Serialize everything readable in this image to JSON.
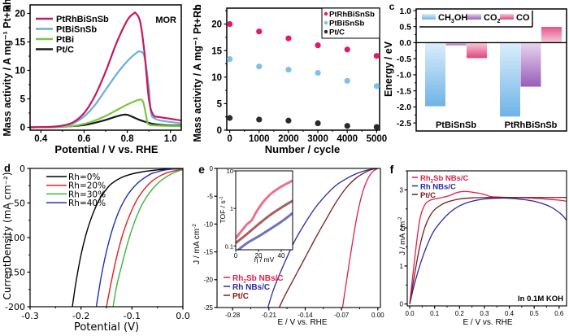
{
  "chart_data": [
    {
      "panel": "a",
      "type": "line",
      "annotation": "MOR",
      "xlabel": "Potential / V vs. RHE",
      "ylabel": "Mass activity / A mg⁻¹ Pt+Rh",
      "xlim": [
        0.35,
        1.05
      ],
      "ylim": [
        -0.5,
        21.5
      ],
      "xticks": [
        0.4,
        0.6,
        0.8,
        1.0
      ],
      "xtick_labels": [
        "0.4",
        "0.6",
        "0.8",
        "1.0"
      ],
      "yticks": [
        0,
        5,
        10,
        15,
        20
      ],
      "ytick_labels": [
        "0",
        "5",
        "10",
        "15",
        "20"
      ],
      "legend_position": "top-left",
      "series": [
        {
          "name": "PtRhBiSnSb",
          "color": "#c8185a",
          "x": [
            0.35,
            0.45,
            0.5,
            0.55,
            0.6,
            0.65,
            0.7,
            0.75,
            0.8,
            0.83,
            0.84,
            0.86,
            0.88,
            0.9,
            0.92,
            0.95,
            1.0,
            1.05
          ],
          "y": [
            0.0,
            0.1,
            0.3,
            0.9,
            2.5,
            5.5,
            9.8,
            14.8,
            18.8,
            20.0,
            20.0,
            18.5,
            13.0,
            5.0,
            2.2,
            1.8,
            1.5,
            1.2
          ]
        },
        {
          "name": "PtBiSnSb",
          "color": "#6aaee0",
          "x": [
            0.35,
            0.45,
            0.5,
            0.55,
            0.6,
            0.65,
            0.7,
            0.75,
            0.8,
            0.84,
            0.86,
            0.88,
            0.9,
            0.91,
            0.93,
            0.97,
            1.05
          ],
          "y": [
            0.0,
            0.1,
            0.25,
            0.7,
            1.9,
            3.9,
            6.6,
            9.3,
            11.6,
            13.0,
            13.3,
            12.3,
            7.0,
            2.5,
            1.5,
            1.1,
            0.7
          ]
        },
        {
          "name": "PtBi",
          "color": "#7cc443",
          "x": [
            0.35,
            0.5,
            0.55,
            0.6,
            0.65,
            0.7,
            0.75,
            0.8,
            0.85,
            0.87,
            0.88,
            0.89,
            0.9,
            0.95,
            1.05
          ],
          "y": [
            0.0,
            0.1,
            0.25,
            0.6,
            1.2,
            2.0,
            3.0,
            4.0,
            4.8,
            4.7,
            3.5,
            1.5,
            0.5,
            0.3,
            0.2
          ]
        },
        {
          "name": "Pt/C",
          "color": "#1a1a1a",
          "x": [
            0.35,
            0.5,
            0.6,
            0.65,
            0.7,
            0.75,
            0.78,
            0.8,
            0.82,
            0.85,
            0.88,
            0.92,
            0.97,
            1.05
          ],
          "y": [
            0.0,
            0.1,
            0.4,
            0.8,
            1.3,
            1.9,
            2.2,
            2.2,
            1.9,
            1.4,
            1.0,
            0.6,
            0.4,
            0.3
          ]
        }
      ]
    },
    {
      "panel": "b",
      "type": "scatter",
      "xlabel": "Number / cycle",
      "ylabel": "Mass activity / A mg⁻¹ Pt+Rh",
      "xlim": [
        -100,
        5100
      ],
      "ylim": [
        0,
        23
      ],
      "xticks": [
        0,
        1000,
        2000,
        3000,
        4000,
        5000
      ],
      "xtick_labels": [
        "0",
        "1000",
        "2000",
        "3000",
        "4000",
        "5000"
      ],
      "yticks": [
        0,
        5,
        10,
        15,
        20
      ],
      "ytick_labels": [
        "0",
        "5",
        "10",
        "15",
        "20"
      ],
      "legend_position": "top-right",
      "x": [
        0,
        1000,
        2000,
        3000,
        4000,
        5000
      ],
      "series": [
        {
          "name": "PtRhBiSnSb",
          "color": "#e0196b",
          "values": [
            20.0,
            18.6,
            17.3,
            16.0,
            15.2,
            14.0
          ]
        },
        {
          "name": "PtBiSnSb",
          "color": "#7ec0ea",
          "values": [
            13.4,
            12.0,
            11.4,
            10.8,
            9.3,
            8.3
          ]
        },
        {
          "name": "Pt/C",
          "color": "#2a2a2a",
          "values": [
            2.3,
            2.0,
            1.8,
            1.3,
            0.8,
            0.6
          ]
        }
      ]
    },
    {
      "panel": "c",
      "type": "bar",
      "ylabel": "Energy / eV",
      "ylim": [
        -2.5,
        1.0
      ],
      "yticks": [
        1.0,
        0.5,
        0.0,
        -0.5,
        -1.0,
        -1.5,
        -2.0,
        -2.5
      ],
      "ytick_labels": [
        "1.0",
        "0.5",
        "0.0",
        "-0.5",
        "-1.0",
        "-1.5",
        "-2.0",
        "-2.5"
      ],
      "categories": [
        "PtBiSnSb",
        "PtRhBiSnSb"
      ],
      "legend_position": "top",
      "series": [
        {
          "name": "CH3OH",
          "label_main": "CH",
          "label_sub": "3",
          "label_tail": "OH",
          "color_light": "#dceefb",
          "color_dark": "#6fb3e6",
          "values": [
            -1.98,
            -2.3
          ]
        },
        {
          "name": "CO2",
          "label_main": "CO",
          "label_sub": "2",
          "label_tail": "",
          "color_light": "#e6d6ee",
          "color_dark": "#9a5cb8",
          "values": [
            -0.08,
            -1.37
          ]
        },
        {
          "name": "CO",
          "label_main": "CO",
          "label_sub": "",
          "label_tail": "",
          "color_light": "#f9c9dd",
          "color_dark": "#e0457e",
          "values": [
            -0.48,
            0.56
          ]
        }
      ]
    },
    {
      "panel": "d",
      "type": "line",
      "xlabel": "Potential (V)",
      "ylabel": "CurrentDensity (mA cm⁻²)",
      "xlim": [
        -0.3,
        0.0
      ],
      "ylim": [
        -200,
        0
      ],
      "xticks": [
        -0.3,
        -0.2,
        -0.1,
        0.0
      ],
      "xtick_labels": [
        "-0.3",
        "-0.2",
        "-0.1",
        "0.0"
      ],
      "yticks": [
        0,
        -50,
        -100,
        -150,
        -200
      ],
      "ytick_labels": [
        "0",
        "-50",
        "-100",
        "-150",
        "-200"
      ],
      "legend_position": "top-left",
      "series": [
        {
          "name": "Rh=0%",
          "color": "#000000",
          "x": [
            -0.217,
            -0.21,
            -0.2,
            -0.19,
            -0.18,
            -0.17,
            -0.16,
            -0.15,
            -0.14,
            -0.12,
            -0.1,
            -0.08,
            -0.06,
            -0.04,
            0.0
          ],
          "y": [
            -200,
            -165,
            -125,
            -95,
            -72,
            -54,
            -40,
            -30,
            -22,
            -13,
            -8,
            -5,
            -3,
            -1.5,
            0
          ]
        },
        {
          "name": "Rh=20%",
          "color": "#e02020",
          "x": [
            -0.15,
            -0.14,
            -0.13,
            -0.12,
            -0.11,
            -0.1,
            -0.09,
            -0.08,
            -0.07,
            -0.06,
            -0.05,
            -0.04,
            -0.03,
            -0.02,
            0.0
          ],
          "y": [
            -200,
            -162,
            -128,
            -100,
            -78,
            -60,
            -45,
            -34,
            -25,
            -18,
            -13,
            -9,
            -6,
            -4,
            -1
          ]
        },
        {
          "name": "Rh=30%",
          "color": "#3cb43c",
          "x": [
            -0.137,
            -0.13,
            -0.12,
            -0.11,
            -0.1,
            -0.09,
            -0.08,
            -0.07,
            -0.06,
            -0.05,
            -0.04,
            -0.03,
            -0.02,
            -0.01,
            0.0
          ],
          "y": [
            -200,
            -170,
            -140,
            -112,
            -88,
            -68,
            -52,
            -40,
            -30,
            -22,
            -16,
            -11,
            -7,
            -4,
            -2
          ]
        },
        {
          "name": "Rh=40%",
          "color": "#2030b0",
          "x": [
            -0.17,
            -0.16,
            -0.15,
            -0.14,
            -0.13,
            -0.12,
            -0.11,
            -0.1,
            -0.09,
            -0.08,
            -0.07,
            -0.06,
            -0.05,
            -0.04,
            -0.02,
            0.0
          ],
          "y": [
            -200,
            -155,
            -120,
            -92,
            -70,
            -53,
            -40,
            -30,
            -22,
            -16,
            -11,
            -7,
            -5,
            -3,
            -1,
            0
          ]
        }
      ]
    },
    {
      "panel": "e",
      "type": "line",
      "xlabel": "E / V vs. RHE",
      "ylabel": "J / mA cm⁻²",
      "xlim": [
        -0.31,
        0.005
      ],
      "ylim": [
        -25,
        0
      ],
      "xticks": [
        -0.28,
        -0.21,
        -0.14,
        -0.07,
        0.0
      ],
      "xtick_labels": [
        "-0.28",
        "-0.21",
        "-0.14",
        "-0.07",
        "0.00"
      ],
      "yticks": [
        0,
        -5,
        -10,
        -15,
        -20,
        -25
      ],
      "ytick_labels": [
        "0",
        "-5",
        "-10",
        "-15",
        "-20",
        "-25"
      ],
      "legend_position": "bottom-left",
      "series": [
        {
          "name": "Rh2Sb NBs/C",
          "label_main": "Rh",
          "label_sub": "2",
          "label_tail": "Sb NBs/C",
          "color": "#e0204a",
          "x": [
            -0.068,
            -0.06,
            -0.05,
            -0.04,
            -0.03,
            -0.02,
            -0.01,
            0.0
          ],
          "y": [
            -25,
            -20,
            -14,
            -8.5,
            -4.5,
            -2,
            -0.6,
            0
          ]
        },
        {
          "name": "Rh NBs/C",
          "label_main": "Rh NBs/C",
          "label_sub": "",
          "label_tail": "",
          "color": "#2a2aa0",
          "x": [
            -0.212,
            -0.2,
            -0.18,
            -0.16,
            -0.14,
            -0.12,
            -0.1,
            -0.08,
            -0.06,
            -0.04,
            -0.02,
            0.0
          ],
          "y": [
            -25,
            -21.5,
            -17,
            -13,
            -9.8,
            -7.0,
            -4.8,
            -3.0,
            -1.8,
            -0.9,
            -0.3,
            0
          ]
        },
        {
          "name": "Pt/C",
          "label_main": "Pt/C",
          "label_sub": "",
          "label_tail": "",
          "color": "#7a1a1a",
          "x": [
            -0.19,
            -0.18,
            -0.16,
            -0.14,
            -0.12,
            -0.1,
            -0.08,
            -0.06,
            -0.04,
            -0.02,
            -0.01,
            0.0
          ],
          "y": [
            -25,
            -23,
            -19.5,
            -16,
            -12.5,
            -9.2,
            -6.0,
            -3.4,
            -1.6,
            -0.5,
            -0.15,
            0
          ]
        }
      ],
      "inset": {
        "type": "line",
        "xlabel": "η / mV",
        "ylabel": "TOF / s⁻¹",
        "xlim": [
          0,
          50
        ],
        "ylim_log10": [
          -1.1,
          1.0
        ],
        "xticks": [
          0,
          20,
          40
        ],
        "xtick_labels": [
          "0",
          "20",
          "40"
        ],
        "yticks": [
          0.1,
          1,
          10
        ],
        "ytick_labels": [
          "0.1",
          "1",
          "10"
        ],
        "series": [
          {
            "name": "Rh2Sb NBs/C",
            "color": "#e8406a",
            "x": [
              0,
              5,
              10,
              14,
              18,
              25,
              32,
              40,
              50
            ],
            "y": [
              0.16,
              0.25,
              0.38,
              0.48,
              0.8,
              1.6,
              2.6,
              3.8,
              5.5
            ]
          },
          {
            "name": "Pt/C",
            "color": "#8a2a2a",
            "x": [
              0,
              10,
              20,
              30,
              40,
              50
            ],
            "y": [
              0.12,
              0.21,
              0.38,
              0.66,
              1.05,
              1.6
            ]
          },
          {
            "name": "Rh NBs/C",
            "color": "#4040b0",
            "x": [
              0,
              10,
              20,
              30,
              40,
              50
            ],
            "y": [
              0.07,
              0.12,
              0.18,
              0.28,
              0.44,
              0.75
            ]
          }
        ]
      }
    },
    {
      "panel": "f",
      "type": "line",
      "annotation": "In 0.1M KOH",
      "xlabel": "E / V vs. RHE",
      "ylabel": "J / mA cm⁻²",
      "xlim": [
        -0.01,
        0.63
      ],
      "ylim": [
        -0.05,
        3.5
      ],
      "xticks": [
        0.0,
        0.1,
        0.2,
        0.3,
        0.4,
        0.5,
        0.6
      ],
      "xtick_labels": [
        "0.0",
        "0.1",
        "0.2",
        "0.3",
        "0.4",
        "0.5",
        "0.6"
      ],
      "yticks": [
        0,
        1,
        2,
        3
      ],
      "ytick_labels": [
        "0",
        "1",
        "2",
        "3"
      ],
      "legend_position": "top-left",
      "series": [
        {
          "name": "Rh2Sb NBs/C",
          "label_main": "Rh",
          "label_sub": "2",
          "label_tail": "Sb NBs/C",
          "color": "#e0204a",
          "x": [
            0.0,
            0.02,
            0.04,
            0.06,
            0.08,
            0.1,
            0.13,
            0.16,
            0.19,
            0.22,
            0.26,
            0.3,
            0.33,
            0.4,
            0.5,
            0.6,
            0.63
          ],
          "y": [
            0.0,
            1.2,
            2.2,
            2.6,
            2.72,
            2.76,
            2.8,
            2.85,
            2.93,
            2.96,
            2.93,
            2.88,
            2.82,
            2.8,
            2.78,
            2.73,
            2.7
          ]
        },
        {
          "name": "Rh NBs/C",
          "label_main": "Rh NBs/C",
          "label_sub": "",
          "label_tail": "",
          "color": "#2a2aa0",
          "x": [
            0.0,
            0.02,
            0.05,
            0.08,
            0.1,
            0.13,
            0.16,
            0.2,
            0.25,
            0.3,
            0.35,
            0.4,
            0.45,
            0.5,
            0.55,
            0.58,
            0.61,
            0.63
          ],
          "y": [
            0.0,
            0.55,
            1.2,
            1.7,
            1.95,
            2.2,
            2.4,
            2.58,
            2.7,
            2.76,
            2.78,
            2.78,
            2.75,
            2.7,
            2.6,
            2.5,
            2.35,
            2.2
          ]
        },
        {
          "name": "Pt/C",
          "label_main": "Pt/C",
          "label_sub": "",
          "label_tail": "",
          "color": "#7a1a1a",
          "x": [
            0.0,
            0.02,
            0.04,
            0.06,
            0.08,
            0.1,
            0.13,
            0.16,
            0.2,
            0.25,
            0.3,
            0.4,
            0.5,
            0.63
          ],
          "y": [
            0.0,
            0.8,
            1.5,
            2.0,
            2.3,
            2.48,
            2.62,
            2.7,
            2.76,
            2.79,
            2.8,
            2.8,
            2.8,
            2.8
          ]
        }
      ]
    }
  ],
  "panel_labels": {
    "a": "a",
    "b": "b",
    "c": "c",
    "d": "d",
    "e": "e",
    "f": "f"
  }
}
